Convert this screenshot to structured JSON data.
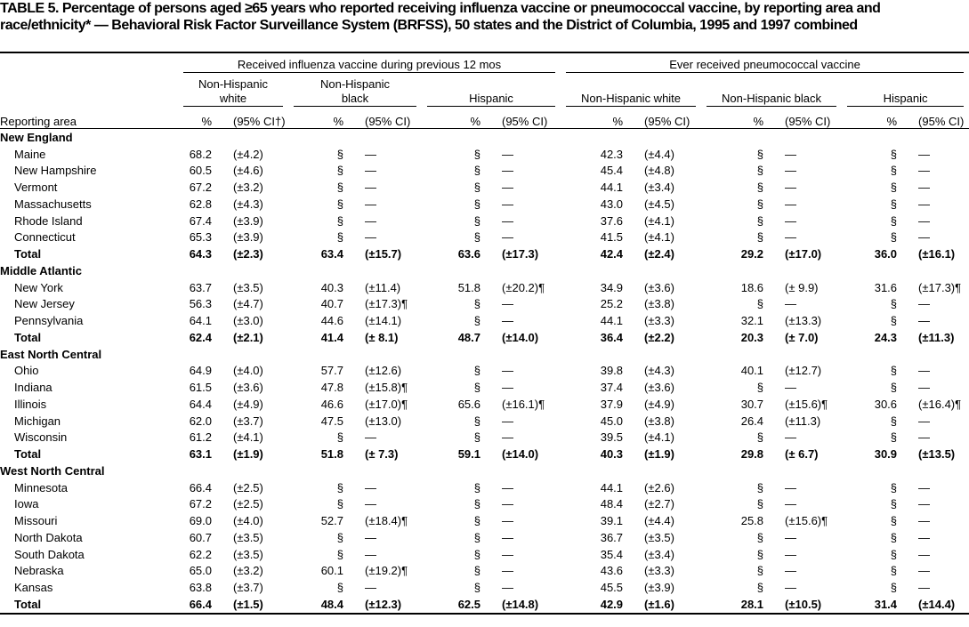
{
  "header": {
    "title": "TABLE 5. Percentage of persons aged ≥65 years who reported receiving influenza vaccine or pneumococcal vaccine, by reporting area and race/ethnicity* — Behavioral Risk Factor Surveillance System (BRFSS), 50 states and the District of Columbia, 1995 and 1997 combined"
  },
  "table": {
    "groups": [
      "Received influenza vaccine during previous 12 mos",
      "Ever received pneumococcal vaccine"
    ],
    "subgroups": [
      "Non-Hispanic white",
      "Non-Hispanic black",
      "Hispanic",
      "Non-Hispanic white",
      "Non-Hispanic black",
      "Hispanic"
    ],
    "columns": [
      "Reporting area",
      "%",
      "(95% CI†)",
      "%",
      "(95% CI)",
      "%",
      "(95% CI)",
      "%",
      "(95% CI)",
      "%",
      "(95% CI)",
      "%",
      "(95% CI)"
    ],
    "sections": [
      {
        "name": "New England",
        "rows": [
          {
            "area": "Maine",
            "cells": [
              "68.2",
              "(±4.2)",
              "§",
              "—",
              "§",
              "—",
              "42.3",
              "(±4.4)",
              "§",
              "—",
              "§",
              "—"
            ]
          },
          {
            "area": "New Hampshire",
            "cells": [
              "60.5",
              "(±4.6)",
              "§",
              "—",
              "§",
              "—",
              "45.4",
              "(±4.8)",
              "§",
              "—",
              "§",
              "—"
            ]
          },
          {
            "area": "Vermont",
            "cells": [
              "67.2",
              "(±3.2)",
              "§",
              "—",
              "§",
              "—",
              "44.1",
              "(±3.4)",
              "§",
              "—",
              "§",
              "—"
            ]
          },
          {
            "area": "Massachusetts",
            "cells": [
              "62.8",
              "(±4.3)",
              "§",
              "—",
              "§",
              "—",
              "43.0",
              "(±4.5)",
              "§",
              "—",
              "§",
              "—"
            ]
          },
          {
            "area": "Rhode Island",
            "cells": [
              "67.4",
              "(±3.9)",
              "§",
              "—",
              "§",
              "—",
              "37.6",
              "(±4.1)",
              "§",
              "—",
              "§",
              "—"
            ]
          },
          {
            "area": "Connecticut",
            "cells": [
              "65.3",
              "(±3.9)",
              "§",
              "—",
              "§",
              "—",
              "41.5",
              "(±4.1)",
              "§",
              "—",
              "§",
              "—"
            ]
          }
        ],
        "total": {
          "area": "Total",
          "cells": [
            "64.3",
            "(±2.3)",
            "63.4",
            "(±15.7)",
            "63.6",
            "(±17.3)",
            "42.4",
            "(±2.4)",
            "29.2",
            "(±17.0)",
            "36.0",
            "(±16.1)"
          ]
        }
      },
      {
        "name": "Middle Atlantic",
        "rows": [
          {
            "area": "New York",
            "cells": [
              "63.7",
              "(±3.5)",
              "40.3",
              "(±11.4)",
              "51.8",
              "(±20.2)¶",
              "34.9",
              "(±3.6)",
              "18.6",
              "(± 9.9)",
              "31.6",
              "(±17.3)¶"
            ]
          },
          {
            "area": "New Jersey",
            "cells": [
              "56.3",
              "(±4.7)",
              "40.7",
              "(±17.3)¶",
              "§",
              "—",
              "25.2",
              "(±3.8)",
              "§",
              "—",
              "§",
              "—"
            ]
          },
          {
            "area": "Pennsylvania",
            "cells": [
              "64.1",
              "(±3.0)",
              "44.6",
              "(±14.1)",
              "§",
              "—",
              "44.1",
              "(±3.3)",
              "32.1",
              "(±13.3)",
              "§",
              "—"
            ]
          }
        ],
        "total": {
          "area": "Total",
          "cells": [
            "62.4",
            "(±2.1)",
            "41.4",
            "(± 8.1)",
            "48.7",
            "(±14.0)",
            "36.4",
            "(±2.2)",
            "20.3",
            "(± 7.0)",
            "24.3",
            "(±11.3)"
          ]
        }
      },
      {
        "name": "East North Central",
        "rows": [
          {
            "area": "Ohio",
            "cells": [
              "64.9",
              "(±4.0)",
              "57.7",
              "(±12.6)",
              "§",
              "—",
              "39.8",
              "(±4.3)",
              "40.1",
              "(±12.7)",
              "§",
              "—"
            ]
          },
          {
            "area": "Indiana",
            "cells": [
              "61.5",
              "(±3.6)",
              "47.8",
              "(±15.8)¶",
              "§",
              "—",
              "37.4",
              "(±3.6)",
              "§",
              "—",
              "§",
              "—"
            ]
          },
          {
            "area": "Illinois",
            "cells": [
              "64.4",
              "(±4.9)",
              "46.6",
              "(±17.0)¶",
              "65.6",
              "(±16.1)¶",
              "37.9",
              "(±4.9)",
              "30.7",
              "(±15.6)¶",
              "30.6",
              "(±16.4)¶"
            ]
          },
          {
            "area": "Michigan",
            "cells": [
              "62.0",
              "(±3.7)",
              "47.5",
              "(±13.0)",
              "§",
              "—",
              "45.0",
              "(±3.8)",
              "26.4",
              "(±11.3)",
              "§",
              "—"
            ]
          },
          {
            "area": "Wisconsin",
            "cells": [
              "61.2",
              "(±4.1)",
              "§",
              "—",
              "§",
              "—",
              "39.5",
              "(±4.1)",
              "§",
              "—",
              "§",
              "—"
            ]
          }
        ],
        "total": {
          "area": "Total",
          "cells": [
            "63.1",
            "(±1.9)",
            "51.8",
            "(± 7.3)",
            "59.1",
            "(±14.0)",
            "40.3",
            "(±1.9)",
            "29.8",
            "(± 6.7)",
            "30.9",
            "(±13.5)"
          ]
        }
      },
      {
        "name": "West North Central",
        "rows": [
          {
            "area": "Minnesota",
            "cells": [
              "66.4",
              "(±2.5)",
              "§",
              "—",
              "§",
              "—",
              "44.1",
              "(±2.6)",
              "§",
              "—",
              "§",
              "—"
            ]
          },
          {
            "area": "Iowa",
            "cells": [
              "67.2",
              "(±2.5)",
              "§",
              "—",
              "§",
              "—",
              "48.4",
              "(±2.7)",
              "§",
              "—",
              "§",
              "—"
            ]
          },
          {
            "area": "Missouri",
            "cells": [
              "69.0",
              "(±4.0)",
              "52.7",
              "(±18.4)¶",
              "§",
              "—",
              "39.1",
              "(±4.4)",
              "25.8",
              "(±15.6)¶",
              "§",
              "—"
            ]
          },
          {
            "area": "North Dakota",
            "cells": [
              "60.7",
              "(±3.5)",
              "§",
              "—",
              "§",
              "—",
              "36.7",
              "(±3.5)",
              "§",
              "—",
              "§",
              "—"
            ]
          },
          {
            "area": "South Dakota",
            "cells": [
              "62.2",
              "(±3.5)",
              "§",
              "—",
              "§",
              "—",
              "35.4",
              "(±3.4)",
              "§",
              "—",
              "§",
              "—"
            ]
          },
          {
            "area": "Nebraska",
            "cells": [
              "65.0",
              "(±3.2)",
              "60.1",
              "(±19.2)¶",
              "§",
              "—",
              "43.6",
              "(±3.3)",
              "§",
              "—",
              "§",
              "—"
            ]
          },
          {
            "area": "Kansas",
            "cells": [
              "63.8",
              "(±3.7)",
              "§",
              "—",
              "§",
              "—",
              "45.5",
              "(±3.9)",
              "§",
              "—",
              "§",
              "—"
            ]
          }
        ],
        "total": {
          "area": "Total",
          "cells": [
            "66.4",
            "(±1.5)",
            "48.4",
            "(±12.3)",
            "62.5",
            "(±14.8)",
            "42.9",
            "(±1.6)",
            "28.1",
            "(±10.5)",
            "31.4",
            "(±14.4)"
          ]
        }
      }
    ]
  }
}
